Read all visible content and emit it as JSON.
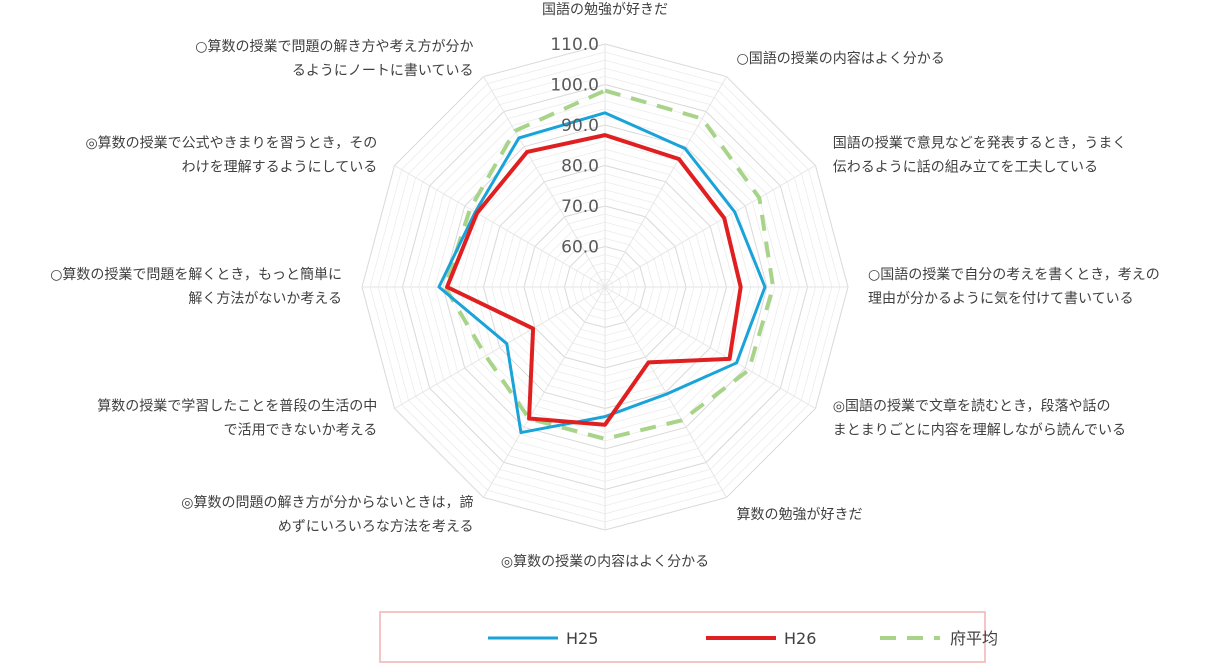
{
  "chart_data": {
    "type": "radar",
    "axes": [
      [
        "国語の勉強が好きだ"
      ],
      [
        "○国語の授業の内容はよく分かる"
      ],
      [
        "国語の授業で意見などを発表するとき，うまく",
        "伝わるように話の組み立てを工夫している"
      ],
      [
        "○国語の授業で自分の考えを書くとき，考えの",
        "理由が分かるように気を付けて書いている"
      ],
      [
        "◎国語の授業で文章を読むとき，段落や話の",
        "まとまりごとに内容を理解しながら読んでいる"
      ],
      [
        "算数の勉強が好きだ"
      ],
      [
        "◎算数の授業の内容はよく分かる"
      ],
      [
        "◎算数の問題の解き方が分からないときは，諦",
        "めずにいろいろな方法を考える"
      ],
      [
        "算数の授業で学習したことを普段の生活の中",
        "で活用できないか考える"
      ],
      [
        "○算数の授業で問題を解くとき，もっと簡単に",
        "解く方法がないか考える"
      ],
      [
        "◎算数の授業で公式やきまりを習うとき，その",
        "わけを理解するようにしている"
      ],
      [
        "○算数の授業で問題の解き方や考え方が分か",
        "るようにノートに書いている"
      ]
    ],
    "rlim": [
      50,
      110
    ],
    "ticks": [
      60,
      70,
      80,
      90,
      100,
      110
    ],
    "tick_labels": [
      "60.0",
      "70.0",
      "80.0",
      "90.0",
      "100.0",
      "110.0"
    ],
    "series": [
      {
        "name": "H25",
        "color": "#1aa3d9",
        "style": "solid",
        "values": [
          93.0,
          89.5,
          87.0,
          89.5,
          87.5,
          80.5,
          82.0,
          91.5,
          78.0,
          91.0,
          87.0,
          92.5
        ]
      },
      {
        "name": "H26",
        "color": "#e02020",
        "style": "solid",
        "values": [
          87.5,
          86.5,
          84.0,
          83.5,
          85.5,
          71.5,
          84.0,
          87.5,
          70.5,
          89.0,
          86.5,
          88.5
        ]
      },
      {
        "name": "府平均",
        "color": "#a8d48a",
        "style": "dashed",
        "values": [
          98.5,
          98.0,
          94.0,
          91.5,
          91.0,
          88.0,
          87.5,
          87.5,
          84.0,
          89.5,
          88.5,
          94.5
        ]
      }
    ],
    "legend_position": "bottom"
  }
}
